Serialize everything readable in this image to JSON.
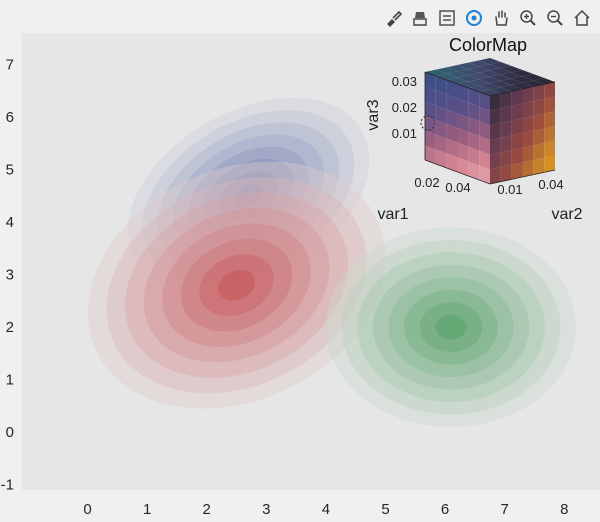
{
  "toolbar": {
    "icons": [
      "brush-icon",
      "paint-icon",
      "legend-icon",
      "rotate3d-icon",
      "pan-hand-icon",
      "zoom-in-icon",
      "zoom-out-icon",
      "home-icon"
    ]
  },
  "chart_data": [
    {
      "type": "scatter",
      "title": "",
      "xlabel": "",
      "ylabel": "",
      "xlim": [
        -1.1,
        8.6
      ],
      "ylim": [
        -1.1,
        7.6
      ],
      "x_ticks": [
        "0",
        "1",
        "2",
        "3",
        "4",
        "5",
        "6",
        "7",
        "8"
      ],
      "y_ticks": [
        "-1",
        "0",
        "1",
        "2",
        "3",
        "4",
        "5",
        "6",
        "7"
      ],
      "grid": false,
      "series": [
        {
          "center": [
            2.7,
            4.5
          ],
          "rx": 2.2,
          "ry": 1.6,
          "rotation_deg": -30,
          "color": "#5b6aa8",
          "levels": 8
        },
        {
          "center": [
            2.5,
            2.8
          ],
          "rx": 2.6,
          "ry": 2.2,
          "rotation_deg": -25,
          "color": "#c34a4e",
          "levels": 8
        },
        {
          "center": [
            6.1,
            2.0
          ],
          "rx": 2.1,
          "ry": 1.9,
          "rotation_deg": 0,
          "color": "#4f9d62",
          "levels": 8
        }
      ]
    },
    {
      "type": "heatmap",
      "title": "ColorMap",
      "xlabel": "var1",
      "ylabel": "var2",
      "zlabel": "var3",
      "var1_ticks": [
        "0.02",
        "0.04"
      ],
      "var2_ticks": [
        "0.01",
        "0.04"
      ],
      "var3_ticks": [
        "0.01",
        "0.02",
        "0.03"
      ],
      "colors": {
        "top": [
          "#2f5f6e",
          "#3f4a6c",
          "#2e2b3e",
          "#2a2834"
        ],
        "left": [
          "#3d4f87",
          "#5a4f86",
          "#9a5e7f",
          "#d98a96",
          "#e8b9be"
        ],
        "right": [
          "#3a2e3e",
          "#6b3d52",
          "#9a4a3e",
          "#c9842c",
          "#f0a80e"
        ]
      }
    }
  ]
}
